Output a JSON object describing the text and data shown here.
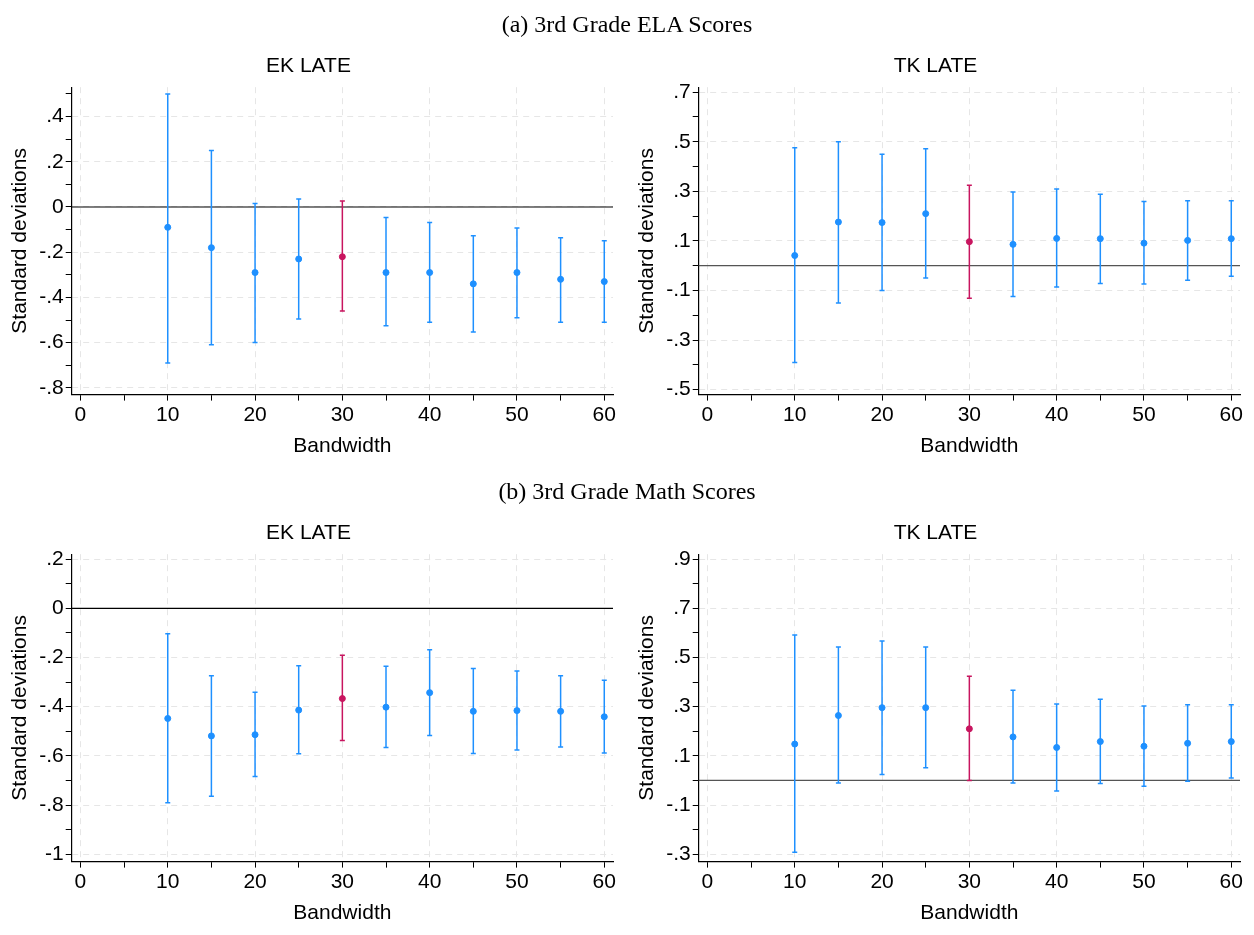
{
  "chart_data": [
    {
      "type": "other",
      "title": "(a) 3rd Grade ELA Scores"
    },
    {
      "type": "scatter",
      "title": "EK LATE",
      "xlabel": "Bandwidth",
      "ylabel": "Standard deviations",
      "xlim": [
        -1,
        61
      ],
      "ylim": [
        -0.83,
        0.53
      ],
      "xticks": [
        0,
        {
          "value": 5,
          "label": null
        },
        10,
        {
          "value": 15,
          "label": null
        },
        20,
        {
          "value": 25,
          "label": null
        },
        30,
        {
          "value": 35,
          "label": null
        },
        40,
        {
          "value": 45,
          "label": null
        },
        50,
        {
          "value": 55,
          "label": null
        },
        60
      ],
      "yticks": [
        {
          "value": -0.8,
          "label": "-.8"
        },
        {
          "value": -0.7,
          "label": null
        },
        {
          "value": -0.6,
          "label": "-.6"
        },
        {
          "value": -0.5,
          "label": null
        },
        {
          "value": -0.4,
          "label": "-.4"
        },
        {
          "value": -0.3,
          "label": null
        },
        {
          "value": -0.2,
          "label": "-.2"
        },
        {
          "value": -0.1,
          "label": null
        },
        0,
        {
          "value": 0.1,
          "label": null
        },
        {
          "value": 0.2,
          "label": ".2"
        },
        {
          "value": 0.3,
          "label": null
        },
        {
          "value": 0.4,
          "label": ".4"
        },
        {
          "value": 0.5,
          "label": null
        }
      ],
      "grid": true,
      "marker": "circle",
      "ref_lines": [
        {
          "axis": "y",
          "value": 0,
          "color": "#000000"
        }
      ],
      "series": [
        {
          "color": "#1e90ff",
          "x": [
            10,
            15,
            20,
            25,
            35,
            40,
            45,
            50,
            55,
            60
          ],
          "values": [
            -0.09,
            -0.18,
            -0.29,
            -0.23,
            -0.29,
            -0.29,
            -0.34,
            -0.29,
            -0.32,
            -0.33
          ],
          "errors": [
            [
              -0.69,
              0.5
            ],
            [
              -0.61,
              0.25
            ],
            [
              -0.6,
              0.015
            ],
            [
              -0.495,
              0.035
            ],
            [
              -0.525,
              -0.047
            ],
            [
              -0.51,
              -0.069
            ],
            [
              -0.553,
              -0.127
            ],
            [
              -0.49,
              -0.093
            ],
            [
              -0.51,
              -0.136
            ],
            [
              -0.51,
              -0.149
            ]
          ]
        },
        {
          "color": "#c8155f",
          "x": [
            30
          ],
          "values": [
            -0.22
          ],
          "errors": [
            [
              -0.46,
              0.026
            ]
          ]
        }
      ]
    },
    {
      "type": "scatter",
      "title": "TK LATE",
      "xlabel": "Bandwidth",
      "ylabel": "Standard deviations",
      "xlim": [
        -1,
        61
      ],
      "ylim": [
        -0.52,
        0.72
      ],
      "xticks": [
        0,
        {
          "value": 5,
          "label": null
        },
        10,
        {
          "value": 15,
          "label": null
        },
        20,
        {
          "value": 25,
          "label": null
        },
        30,
        {
          "value": 35,
          "label": null
        },
        40,
        {
          "value": 45,
          "label": null
        },
        50,
        {
          "value": 55,
          "label": null
        },
        60
      ],
      "yticks": [
        {
          "value": -0.5,
          "label": "-.5"
        },
        {
          "value": -0.4,
          "label": null
        },
        {
          "value": -0.3,
          "label": "-.3"
        },
        {
          "value": -0.2,
          "label": null
        },
        {
          "value": -0.1,
          "label": "-.1"
        },
        {
          "value": 0,
          "label": null
        },
        {
          "value": 0.1,
          "label": ".1"
        },
        {
          "value": 0.2,
          "label": null
        },
        {
          "value": 0.3,
          "label": ".3"
        },
        {
          "value": 0.4,
          "label": null
        },
        {
          "value": 0.5,
          "label": ".5"
        },
        {
          "value": 0.6,
          "label": null
        },
        {
          "value": 0.7,
          "label": ".7"
        }
      ],
      "grid": true,
      "marker": "circle",
      "ref_lines": [
        {
          "axis": "y",
          "value": 0,
          "color": "#555555"
        }
      ],
      "series": [
        {
          "color": "#1e90ff",
          "x": [
            10,
            15,
            20,
            25,
            35,
            40,
            45,
            50,
            55,
            60
          ],
          "values": [
            0.041,
            0.176,
            0.174,
            0.21,
            0.086,
            0.11,
            0.109,
            0.091,
            0.102,
            0.109
          ],
          "errors": [
            [
              -0.391,
              0.476
            ],
            [
              -0.15,
              0.5
            ],
            [
              -0.1,
              0.45
            ],
            [
              -0.05,
              0.472
            ],
            [
              -0.124,
              0.297
            ],
            [
              -0.086,
              0.309
            ],
            [
              -0.072,
              0.288
            ],
            [
              -0.074,
              0.259
            ],
            [
              -0.059,
              0.262
            ],
            [
              -0.043,
              0.262
            ]
          ]
        },
        {
          "color": "#c8155f",
          "x": [
            30
          ],
          "values": [
            0.097
          ],
          "errors": [
            [
              -0.131,
              0.324
            ]
          ]
        }
      ]
    },
    {
      "type": "other",
      "title": "(b) 3rd Grade Math Scores"
    },
    {
      "type": "scatter",
      "title": "EK LATE",
      "xlabel": "Bandwidth",
      "ylabel": "Standard deviations",
      "xlim": [
        -1,
        61
      ],
      "ylim": [
        -1.03,
        0.22
      ],
      "xticks": [
        0,
        {
          "value": 5,
          "label": null
        },
        10,
        {
          "value": 15,
          "label": null
        },
        20,
        {
          "value": 25,
          "label": null
        },
        30,
        {
          "value": 35,
          "label": null
        },
        40,
        {
          "value": 45,
          "label": null
        },
        50,
        {
          "value": 55,
          "label": null
        },
        60
      ],
      "yticks": [
        {
          "value": -1,
          "label": "-1"
        },
        {
          "value": -0.9,
          "label": null
        },
        {
          "value": -0.8,
          "label": "-.8"
        },
        {
          "value": -0.7,
          "label": null
        },
        {
          "value": -0.6,
          "label": "-.6"
        },
        {
          "value": -0.5,
          "label": null
        },
        {
          "value": -0.4,
          "label": "-.4"
        },
        {
          "value": -0.3,
          "label": null
        },
        {
          "value": -0.2,
          "label": "-.2"
        },
        {
          "value": -0.1,
          "label": null
        },
        0,
        {
          "value": 0.1,
          "label": null
        },
        {
          "value": 0.2,
          "label": ".2"
        }
      ],
      "grid": true,
      "marker": "circle",
      "ref_lines": [
        {
          "axis": "y",
          "value": 0,
          "color": "#000000"
        }
      ],
      "series": [
        {
          "color": "#1e90ff",
          "x": [
            10,
            15,
            20,
            25,
            35,
            40,
            45,
            50,
            55,
            60
          ],
          "values": [
            -0.448,
            -0.519,
            -0.514,
            -0.414,
            -0.402,
            -0.343,
            -0.419,
            -0.416,
            -0.419,
            -0.441
          ],
          "errors": [
            [
              -0.791,
              -0.103
            ],
            [
              -0.764,
              -0.274
            ],
            [
              -0.684,
              -0.341
            ],
            [
              -0.591,
              -0.234
            ],
            [
              -0.566,
              -0.236
            ],
            [
              -0.517,
              -0.169
            ],
            [
              -0.59,
              -0.245
            ],
            [
              -0.576,
              -0.255
            ],
            [
              -0.564,
              -0.274
            ],
            [
              -0.588,
              -0.293
            ]
          ]
        },
        {
          "color": "#c8155f",
          "x": [
            30
          ],
          "values": [
            -0.367
          ],
          "errors": [
            [
              -0.538,
              -0.191
            ]
          ]
        }
      ]
    },
    {
      "type": "scatter",
      "title": "TK LATE",
      "xlabel": "Bandwidth",
      "ylabel": "Standard deviations",
      "xlim": [
        -1,
        61
      ],
      "ylim": [
        -0.33,
        0.92
      ],
      "xticks": [
        0,
        {
          "value": 5,
          "label": null
        },
        10,
        {
          "value": 15,
          "label": null
        },
        20,
        {
          "value": 25,
          "label": null
        },
        30,
        {
          "value": 35,
          "label": null
        },
        40,
        {
          "value": 45,
          "label": null
        },
        50,
        {
          "value": 55,
          "label": null
        },
        60
      ],
      "yticks": [
        {
          "value": -0.3,
          "label": "-.3"
        },
        {
          "value": -0.2,
          "label": null
        },
        {
          "value": -0.1,
          "label": "-.1"
        },
        {
          "value": 0,
          "label": null
        },
        {
          "value": 0.1,
          "label": ".1"
        },
        {
          "value": 0.2,
          "label": null
        },
        {
          "value": 0.3,
          "label": ".3"
        },
        {
          "value": 0.4,
          "label": null
        },
        {
          "value": 0.5,
          "label": ".5"
        },
        {
          "value": 0.6,
          "label": null
        },
        {
          "value": 0.7,
          "label": ".7"
        },
        {
          "value": 0.8,
          "label": null
        },
        {
          "value": 0.9,
          "label": ".9"
        }
      ],
      "grid": true,
      "marker": "circle",
      "ref_lines": [
        {
          "axis": "y",
          "value": 0,
          "color": "#555555"
        }
      ],
      "series": [
        {
          "color": "#1e90ff",
          "x": [
            10,
            15,
            20,
            25,
            35,
            40,
            45,
            50,
            55,
            60
          ],
          "values": [
            0.148,
            0.264,
            0.296,
            0.296,
            0.177,
            0.134,
            0.158,
            0.139,
            0.151,
            0.158
          ],
          "errors": [
            [
              -0.292,
              0.591
            ],
            [
              -0.01,
              0.543
            ],
            [
              0.024,
              0.567
            ],
            [
              0.052,
              0.543
            ],
            [
              -0.01,
              0.367
            ],
            [
              -0.043,
              0.311
            ],
            [
              -0.012,
              0.33
            ],
            [
              -0.024,
              0.303
            ],
            [
              -0.003,
              0.308
            ],
            [
              0.01,
              0.308
            ]
          ]
        },
        {
          "color": "#c8155f",
          "x": [
            30
          ],
          "values": [
            0.21
          ],
          "errors": [
            [
              0,
              0.424
            ]
          ]
        }
      ]
    }
  ]
}
